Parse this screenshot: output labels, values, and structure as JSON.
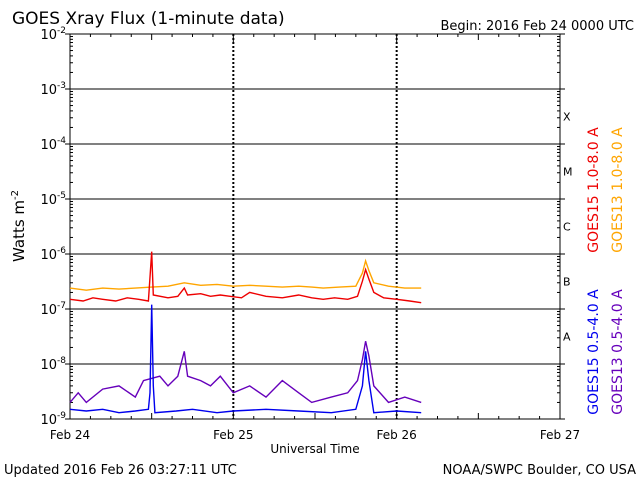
{
  "chart_data": {
    "type": "line",
    "title": "GOES Xray Flux (1-minute data)",
    "begin_label": "Begin:  2016 Feb 24 0000 UTC",
    "xlabel": "Universal Time",
    "ylabel": "Watts m",
    "ylabel_exp": "-2",
    "y_scale": "log",
    "ylim": [
      1e-09,
      0.01
    ],
    "y_ticks": [
      {
        "base": "10",
        "exp": "-2",
        "value": 0.01
      },
      {
        "base": "10",
        "exp": "-3",
        "value": 0.001
      },
      {
        "base": "10",
        "exp": "-4",
        "value": 0.0001
      },
      {
        "base": "10",
        "exp": "-5",
        "value": 1e-05
      },
      {
        "base": "10",
        "exp": "-6",
        "value": 1e-06
      },
      {
        "base": "10",
        "exp": "-7",
        "value": 1e-07
      },
      {
        "base": "10",
        "exp": "-8",
        "value": 1e-08
      },
      {
        "base": "10",
        "exp": "-9",
        "value": 1e-09
      }
    ],
    "x_unit": "days since Feb 24 00:00 UTC",
    "xlim": [
      0,
      3
    ],
    "x_ticks": [
      {
        "label": "Feb 24",
        "value": 0
      },
      {
        "label": "Feb 25",
        "value": 1
      },
      {
        "label": "Feb 26",
        "value": 2
      },
      {
        "label": "Feb 27",
        "value": 3
      }
    ],
    "flare_classes": [
      {
        "label": "X",
        "value": 0.000316
      },
      {
        "label": "M",
        "value": 3.16e-05
      },
      {
        "label": "C",
        "value": 3.16e-06
      },
      {
        "label": "B",
        "value": 3.16e-07
      },
      {
        "label": "A",
        "value": 3.16e-08
      }
    ],
    "series": [
      {
        "name": "GOES15 1.0-8.0 A",
        "color": "#ee0000",
        "points": [
          [
            0.0,
            1.5e-07
          ],
          [
            0.08,
            1.4e-07
          ],
          [
            0.14,
            1.6e-07
          ],
          [
            0.2,
            1.5e-07
          ],
          [
            0.28,
            1.4e-07
          ],
          [
            0.35,
            1.6e-07
          ],
          [
            0.42,
            1.5e-07
          ],
          [
            0.48,
            1.4e-07
          ],
          [
            0.5,
            1.1e-06
          ],
          [
            0.51,
            1.8e-07
          ],
          [
            0.6,
            1.6e-07
          ],
          [
            0.66,
            1.7e-07
          ],
          [
            0.7,
            2.4e-07
          ],
          [
            0.72,
            1.8e-07
          ],
          [
            0.8,
            1.9e-07
          ],
          [
            0.86,
            1.7e-07
          ],
          [
            0.92,
            1.8e-07
          ],
          [
            0.98,
            1.7e-07
          ],
          [
            1.05,
            1.6e-07
          ],
          [
            1.1,
            2e-07
          ],
          [
            1.2,
            1.7e-07
          ],
          [
            1.3,
            1.6e-07
          ],
          [
            1.4,
            1.8e-07
          ],
          [
            1.48,
            1.6e-07
          ],
          [
            1.55,
            1.5e-07
          ],
          [
            1.62,
            1.6e-07
          ],
          [
            1.7,
            1.5e-07
          ],
          [
            1.76,
            1.7e-07
          ],
          [
            1.79,
            3.2e-07
          ],
          [
            1.81,
            5.2e-07
          ],
          [
            1.83,
            3.5e-07
          ],
          [
            1.86,
            2e-07
          ],
          [
            1.92,
            1.6e-07
          ],
          [
            2.0,
            1.5e-07
          ],
          [
            2.08,
            1.4e-07
          ],
          [
            2.15,
            1.3e-07
          ]
        ]
      },
      {
        "name": "GOES13 1.0-8.0 A",
        "color": "#ffa500",
        "points": [
          [
            0.0,
            2.4e-07
          ],
          [
            0.1,
            2.2e-07
          ],
          [
            0.2,
            2.4e-07
          ],
          [
            0.3,
            2.3e-07
          ],
          [
            0.4,
            2.4e-07
          ],
          [
            0.5,
            2.5e-07
          ],
          [
            0.6,
            2.6e-07
          ],
          [
            0.7,
            3e-07
          ],
          [
            0.8,
            2.7e-07
          ],
          [
            0.9,
            2.8e-07
          ],
          [
            1.0,
            2.6e-07
          ],
          [
            1.1,
            2.7e-07
          ],
          [
            1.2,
            2.6e-07
          ],
          [
            1.3,
            2.5e-07
          ],
          [
            1.4,
            2.6e-07
          ],
          [
            1.48,
            2.5e-07
          ],
          [
            1.55,
            2.4e-07
          ],
          [
            1.65,
            2.5e-07
          ],
          [
            1.75,
            2.6e-07
          ],
          [
            1.79,
            4.5e-07
          ],
          [
            1.81,
            7.5e-07
          ],
          [
            1.83,
            5e-07
          ],
          [
            1.86,
            3e-07
          ],
          [
            1.95,
            2.6e-07
          ],
          [
            2.05,
            2.4e-07
          ],
          [
            2.15,
            2.4e-07
          ]
        ]
      },
      {
        "name": "GOES15 0.5-4.0 A",
        "color": "#0000ee",
        "points": [
          [
            0.0,
            1.5e-09
          ],
          [
            0.1,
            1.4e-09
          ],
          [
            0.2,
            1.5e-09
          ],
          [
            0.3,
            1.3e-09
          ],
          [
            0.4,
            1.4e-09
          ],
          [
            0.48,
            1.5e-09
          ],
          [
            0.49,
            3e-09
          ],
          [
            0.5,
            1.2e-07
          ],
          [
            0.51,
            4e-09
          ],
          [
            0.52,
            1.3e-09
          ],
          [
            0.65,
            1.4e-09
          ],
          [
            0.75,
            1.5e-09
          ],
          [
            0.9,
            1.3e-09
          ],
          [
            1.0,
            1.4e-09
          ],
          [
            1.2,
            1.5e-09
          ],
          [
            1.4,
            1.4e-09
          ],
          [
            1.6,
            1.3e-09
          ],
          [
            1.75,
            1.5e-09
          ],
          [
            1.79,
            4e-09
          ],
          [
            1.81,
            1.7e-08
          ],
          [
            1.83,
            5e-09
          ],
          [
            1.86,
            1.3e-09
          ],
          [
            2.0,
            1.4e-09
          ],
          [
            2.15,
            1.3e-09
          ]
        ]
      },
      {
        "name": "GOES13 0.5-4.0 A",
        "color": "#6600bb",
        "points": [
          [
            0.0,
            2e-09
          ],
          [
            0.05,
            3e-09
          ],
          [
            0.1,
            2e-09
          ],
          [
            0.2,
            3.5e-09
          ],
          [
            0.3,
            4e-09
          ],
          [
            0.4,
            2.5e-09
          ],
          [
            0.45,
            5e-09
          ],
          [
            0.55,
            6e-09
          ],
          [
            0.6,
            4e-09
          ],
          [
            0.66,
            6e-09
          ],
          [
            0.7,
            1.7e-08
          ],
          [
            0.72,
            6e-09
          ],
          [
            0.8,
            5e-09
          ],
          [
            0.86,
            4e-09
          ],
          [
            0.92,
            6e-09
          ],
          [
            1.0,
            3e-09
          ],
          [
            1.1,
            4e-09
          ],
          [
            1.2,
            2.5e-09
          ],
          [
            1.3,
            5e-09
          ],
          [
            1.4,
            3e-09
          ],
          [
            1.48,
            2e-09
          ],
          [
            1.6,
            2.5e-09
          ],
          [
            1.7,
            3e-09
          ],
          [
            1.76,
            5e-09
          ],
          [
            1.79,
            1.2e-08
          ],
          [
            1.81,
            2.6e-08
          ],
          [
            1.83,
            1.4e-08
          ],
          [
            1.86,
            4e-09
          ],
          [
            1.95,
            2e-09
          ],
          [
            2.05,
            2.5e-09
          ],
          [
            2.15,
            2e-09
          ]
        ]
      }
    ]
  },
  "footer": {
    "updated": "Updated 2016 Feb 26 03:27:11 UTC",
    "credit": "NOAA/SWPC Boulder, CO USA"
  },
  "colors": {
    "axis": "#000000",
    "background": "#ffffff"
  }
}
